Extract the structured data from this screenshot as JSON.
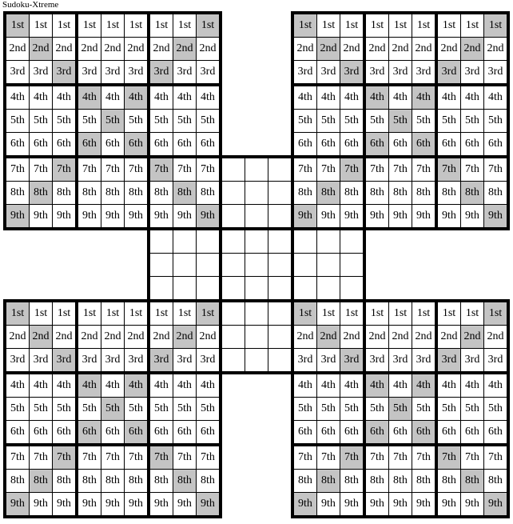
{
  "title": "Sudoku-Xtreme",
  "colors": {
    "grid_line": "#000000",
    "cell_bg": "#ffffff",
    "shaded_cell": "#c4c4c4",
    "text": "#000000"
  },
  "row_labels": [
    "1st",
    "2nd",
    "3rd",
    "4th",
    "5th",
    "6th",
    "7th",
    "8th",
    "9th"
  ],
  "shaded_columns_by_row": [
    [
      1,
      9
    ],
    [
      2,
      8
    ],
    [
      3,
      7
    ],
    [
      4,
      6
    ],
    [
      5
    ],
    [
      4,
      6
    ],
    [
      3,
      7
    ],
    [
      2,
      8
    ],
    [
      1,
      9
    ]
  ],
  "grids": [
    {
      "key": "center",
      "labeled": false
    },
    {
      "key": "top-left",
      "labeled": true
    },
    {
      "key": "top-right",
      "labeled": true
    },
    {
      "key": "bottom-left",
      "labeled": true
    },
    {
      "key": "bottom-right",
      "labeled": true
    }
  ]
}
